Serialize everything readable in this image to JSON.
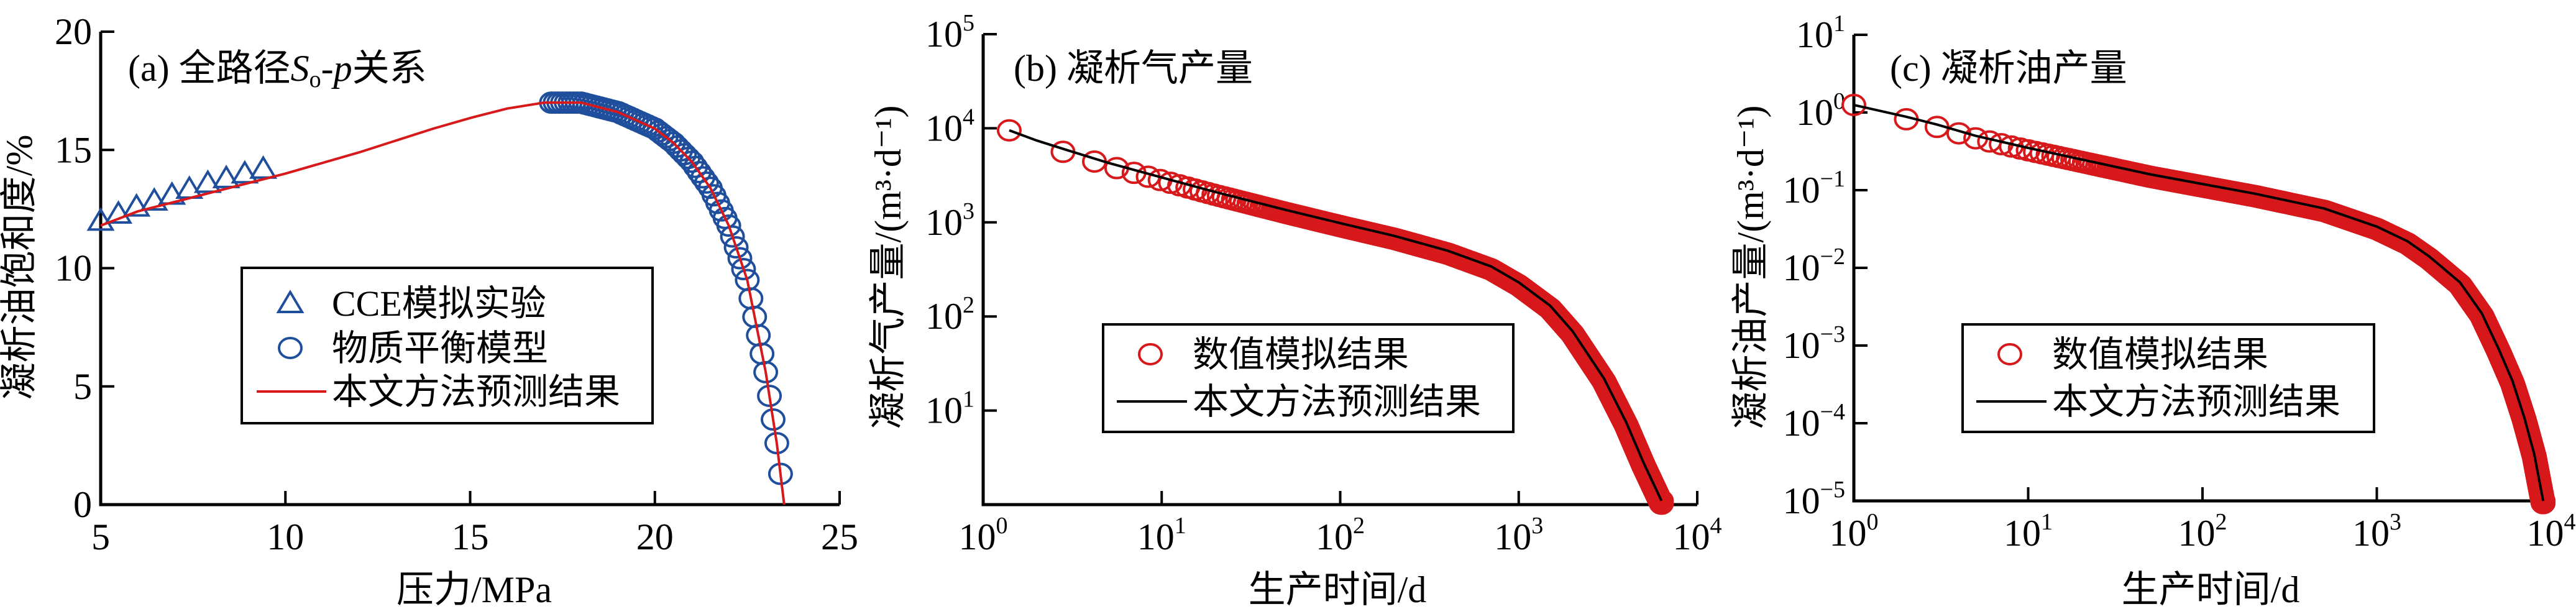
{
  "colors": {
    "blue": "#1f4e9c",
    "red": "#d7191c",
    "black": "#000000"
  },
  "chart_data": [
    {
      "type": "scatter",
      "title": "(a) 全路径So-p关系",
      "title_parts": {
        "prefix": "(a) 全路径",
        "S": "S",
        "sub": "o",
        "dash": "-",
        "p": "p",
        "suffix": "关系"
      },
      "xlabel": "压力/MPa",
      "ylabel": "凝析油饱和度/%",
      "xlim": [
        5,
        25
      ],
      "ylim": [
        0,
        20
      ],
      "xticks": [
        "5",
        "10",
        "15",
        "20",
        "25"
      ],
      "yticks": [
        "0",
        "5",
        "10",
        "15",
        "20"
      ],
      "legend": [
        "CCE模拟实验",
        "物质平衡模型",
        "本文方法预测结果"
      ],
      "series": [
        {
          "name": "CCE模拟实验",
          "marker": "triangle",
          "x": [
            5.0,
            5.48,
            5.97,
            6.45,
            6.93,
            7.4,
            7.9,
            8.4,
            8.9,
            9.4
          ],
          "y": [
            12.0,
            12.3,
            12.6,
            12.85,
            13.1,
            13.35,
            13.6,
            13.8,
            14.0,
            14.2
          ]
        },
        {
          "name": "物质平衡模型",
          "marker": "circle",
          "p_range": [
            17.2,
            23.5
          ],
          "p_step": 0.1
        },
        {
          "name": "本文方法预测结果",
          "marker": "line",
          "x": [
            5,
            6,
            7,
            8,
            9,
            10,
            12,
            14,
            15,
            16,
            17,
            18,
            19,
            20,
            20.5,
            21,
            21.5,
            22,
            22.5,
            23,
            23.3,
            23.5
          ],
          "y": [
            11.8,
            12.4,
            12.8,
            13.2,
            13.6,
            14.0,
            14.9,
            15.9,
            16.35,
            16.75,
            17.0,
            17.0,
            16.6,
            15.9,
            15.3,
            14.5,
            13.4,
            11.8,
            9.5,
            5.6,
            2.6,
            0
          ]
        }
      ]
    },
    {
      "type": "scatter",
      "title": "(b) 凝析气产量",
      "xlabel": "生产时间/d",
      "ylabel": "凝析气产量/(m³·d⁻¹)",
      "xscale": "log",
      "yscale": "log",
      "xlim": [
        1,
        10000
      ],
      "ylim": [
        1,
        100000
      ],
      "xticks": [
        {
          "base": "10",
          "exp": "0"
        },
        {
          "base": "10",
          "exp": "1"
        },
        {
          "base": "10",
          "exp": "2"
        },
        {
          "base": "10",
          "exp": "3"
        },
        {
          "base": "10",
          "exp": "4"
        }
      ],
      "yticks": [
        {
          "base": "10",
          "exp": "1"
        },
        {
          "base": "10",
          "exp": "2"
        },
        {
          "base": "10",
          "exp": "3"
        },
        {
          "base": "10",
          "exp": "4"
        },
        {
          "base": "10",
          "exp": "5"
        }
      ],
      "legend": [
        "数值模拟结果",
        "本文方法预测结果"
      ],
      "series": [
        {
          "name": "数值模拟结果",
          "marker": "circle",
          "t_start": 1.4,
          "t_step": 1.4,
          "t_end": 6300,
          "ratio_to_line": 0.93
        },
        {
          "name": "本文方法预测结果",
          "marker": "line",
          "x": [
            1.4,
            2,
            3,
            5,
            10,
            20,
            50,
            100,
            200,
            400,
            700,
            1000,
            1500,
            2000,
            3000,
            4000,
            5000,
            6300
          ],
          "y": [
            9500,
            7400,
            5800,
            4300,
            3000,
            2100,
            1350,
            980,
            720,
            500,
            340,
            230,
            130,
            70,
            22,
            7.5,
            2.8,
            1.1
          ]
        }
      ]
    },
    {
      "type": "scatter",
      "title": "(c) 凝析油产量",
      "xlabel": "生产时间/d",
      "ylabel": "凝析油产量/(m³·d⁻¹)",
      "xscale": "log",
      "yscale": "log",
      "xlim": [
        1,
        10000
      ],
      "ylim": [
        1e-05,
        10
      ],
      "xticks": [
        {
          "base": "10",
          "exp": "0"
        },
        {
          "base": "10",
          "exp": "1"
        },
        {
          "base": "10",
          "exp": "2"
        },
        {
          "base": "10",
          "exp": "3"
        },
        {
          "base": "10",
          "exp": "4"
        }
      ],
      "yticks": [
        {
          "base": "10",
          "exp": "−5"
        },
        {
          "base": "10",
          "exp": "−4"
        },
        {
          "base": "10",
          "exp": "−3"
        },
        {
          "base": "10",
          "exp": "−2"
        },
        {
          "base": "10",
          "exp": "−1"
        },
        {
          "base": "10",
          "exp": "0"
        },
        {
          "base": "10",
          "exp": "1"
        }
      ],
      "legend": [
        "数值模拟结果",
        "本文方法预测结果"
      ],
      "series": [
        {
          "name": "数值模拟结果",
          "marker": "circle",
          "t_start": 1,
          "t_step": 1,
          "t_end": 9000,
          "ratio_to_line": 0.93
        },
        {
          "name": "本文方法预测结果",
          "marker": "line",
          "x": [
            1,
            2,
            3,
            5,
            10,
            20,
            50,
            100,
            200,
            500,
            1000,
            1500,
            2000,
            3000,
            4000,
            5000,
            6000,
            7000,
            8000,
            9000
          ],
          "y": [
            1.25,
            0.88,
            0.7,
            0.5,
            0.35,
            0.25,
            0.16,
            0.12,
            0.09,
            0.058,
            0.034,
            0.022,
            0.014,
            0.0065,
            0.0026,
            0.0009,
            0.00035,
            0.00012,
            4e-05,
            1e-05
          ]
        }
      ]
    }
  ]
}
